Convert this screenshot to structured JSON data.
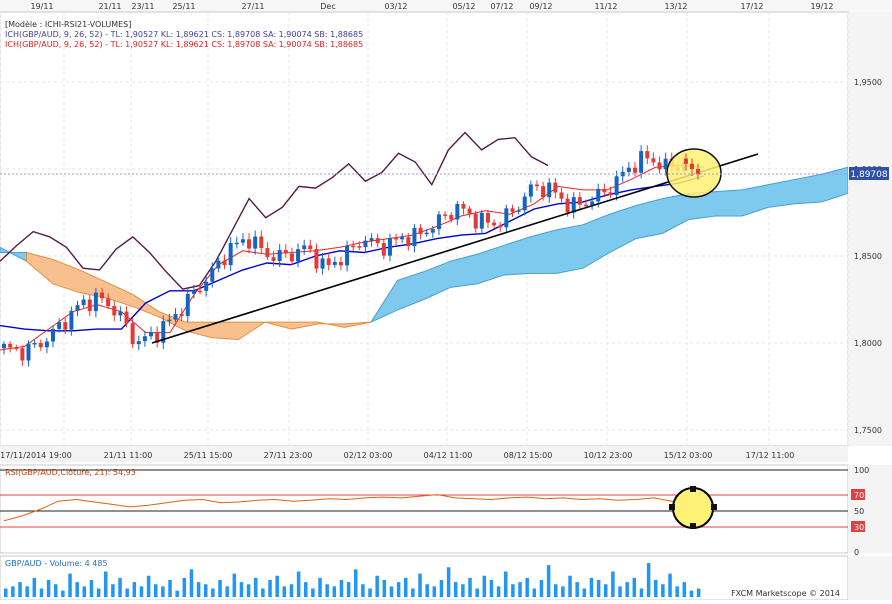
{
  "colors": {
    "price_up": "#1565c0",
    "price_down": "#e53935",
    "kijun": "#0000cc",
    "tenkan": "#ee2222",
    "chikou": "#551a4a",
    "cloud_bull": "#7ec9ee",
    "cloud_bear": "#f7c08e",
    "trendline": "#000000",
    "rsi": "#e06010",
    "volume": "#2196f3",
    "highlight": "#fff176"
  },
  "top_axis": {
    "labels": [
      "19/11",
      "21/11",
      "23/11",
      "25/11",
      "27/11",
      "Dec",
      "03/12",
      "05/12",
      "07/12",
      "09/12",
      "11/12",
      "13/12",
      "17/12",
      "19/12"
    ]
  },
  "price_panel": {
    "legend_model": "[Modèle : ICHI-RSI21-VOLUMES]",
    "legend_ichi": "ICH(GBP/AUD, 9, 26, 52) -  TL: 1,90527  KL: 1,89621  CS: 1,89708  SA: 1,90074  SB: 1,88685",
    "legend_ichi_red": "ICH(GBP/AUD, 9, 26, 52) -  TL: 1,90527  KL: 1,89621  CS: 1,89708  SA: 1,90074  SB: 1,88685",
    "current_price": "1,89708",
    "y_ticks": [
      "1,9500",
      "1,9000",
      "1,8500",
      "1,8000",
      "1,7500"
    ],
    "x_labels": [
      "17/11/2014 19:00",
      "21/11 11:00",
      "25/11 15:00",
      "27/11 23:00",
      "02/12 03:00",
      "04/12 11:00",
      "08/12 15:00",
      "10/12 23:00",
      "15/12 03:00",
      "17/12 11:00"
    ]
  },
  "rsi_panel": {
    "title": "RSI(GBP/AUD,Clôture, 21): 54,93",
    "levels": [
      "100",
      "70",
      "50",
      "30",
      "0"
    ]
  },
  "volume_panel": {
    "title": "GBP/AUD - Volume: 4 485",
    "credit": "FXCM Marketscope © 2014"
  },
  "chart_data": [
    {
      "type": "candlestick",
      "title": "GBP/AUD",
      "x": [
        "17/11/2014 19:00",
        "21/11 11:00",
        "25/11 15:00",
        "27/11 23:00",
        "02/12 03:00",
        "04/12 11:00",
        "08/12 15:00",
        "10/12 23:00",
        "15/12 03:00",
        "17/12 11:00"
      ],
      "ylim": [
        1.745,
        1.99
      ],
      "last_close": 1.89708,
      "ichimoku": {
        "tenkan": 1.90527,
        "kijun": 1.89621,
        "chikou": 1.89708,
        "senkou_a": 1.90074,
        "senkou_b": 1.88685
      },
      "price_path": [
        1.797,
        1.795,
        1.8,
        1.81,
        1.822,
        1.826,
        1.818,
        1.8,
        1.805,
        1.815,
        1.828,
        1.84,
        1.855,
        1.86,
        1.85,
        1.85,
        1.855,
        1.843,
        1.85,
        1.86,
        1.855,
        1.86,
        1.862,
        1.87,
        1.878,
        1.871,
        1.868,
        1.876,
        1.89,
        1.888,
        1.878,
        1.882,
        1.888,
        1.9,
        1.907,
        1.901,
        1.903
      ],
      "tenkan_path": [
        1.796,
        1.798,
        1.808,
        1.818,
        1.822,
        1.818,
        1.806,
        1.806,
        1.828,
        1.845,
        1.853,
        1.851,
        1.852,
        1.853,
        1.855,
        1.858,
        1.86,
        1.862,
        1.867,
        1.873,
        1.876,
        1.874,
        1.88,
        1.89,
        1.888,
        1.888,
        1.894,
        1.901,
        1.902,
        1.901
      ],
      "kijun_path": [
        1.81,
        1.808,
        1.807,
        1.807,
        1.808,
        1.808,
        1.823,
        1.83,
        1.83,
        1.836,
        1.842,
        1.846,
        1.845,
        1.85,
        1.853,
        1.852,
        1.855,
        1.857,
        1.86,
        1.862,
        1.863,
        1.87,
        1.877,
        1.88,
        1.881,
        1.885,
        1.888,
        1.89,
        1.892,
        1.896
      ],
      "chikou_path": [
        1.847,
        1.856,
        1.864,
        1.861,
        1.855,
        1.843,
        1.842,
        1.854,
        1.861,
        1.852,
        1.841,
        1.831,
        1.833,
        1.847,
        1.865,
        1.883,
        1.872,
        1.878,
        1.89,
        1.889,
        1.895,
        1.903,
        1.893,
        1.898,
        1.909,
        1.904,
        1.891,
        1.911,
        1.921,
        1.911,
        1.917,
        1.918,
        1.907,
        1.902
      ],
      "senkou_a_path": [
        1.855,
        1.847,
        1.834,
        1.829,
        1.826,
        1.821,
        1.815,
        1.807,
        1.803,
        1.802,
        1.812,
        1.812,
        1.812,
        1.809,
        1.812,
        1.836,
        1.841,
        1.847,
        1.851,
        1.856,
        1.861,
        1.865,
        1.868,
        1.874,
        1.879,
        1.883,
        1.886,
        1.887,
        1.888,
        1.891,
        1.894,
        1.897,
        1.901
      ],
      "senkou_b_path": [
        1.852,
        1.852,
        1.848,
        1.842,
        1.835,
        1.828,
        1.818,
        1.812,
        1.812,
        1.812,
        1.812,
        1.808,
        1.811,
        1.811,
        1.812,
        1.819,
        1.825,
        1.832,
        1.834,
        1.839,
        1.84,
        1.84,
        1.843,
        1.852,
        1.86,
        1.863,
        1.871,
        1.873,
        1.873,
        1.878,
        1.88,
        1.881,
        1.886
      ],
      "trendline": [
        [
          1.801,
          1.906
        ]
      ]
    },
    {
      "type": "line",
      "title": "RSI(GBP/AUD,Clôture, 21): 54,93",
      "ylim": [
        0,
        100
      ],
      "reference_lines": [
        70,
        50,
        30
      ],
      "last_value": 54.93,
      "values": [
        38,
        44,
        52,
        62,
        64,
        61,
        58,
        55,
        57,
        60,
        63,
        64,
        60,
        61,
        63,
        64,
        62,
        63,
        65,
        64,
        66,
        67,
        66,
        68,
        70,
        66,
        65,
        64,
        66,
        67,
        65,
        66,
        64,
        65,
        63,
        64,
        66,
        62,
        58,
        55
      ]
    },
    {
      "type": "bar",
      "title": "GBP/AUD - Volume: 4 485",
      "last_value": 4485,
      "values": [
        4,
        5,
        7,
        5,
        9,
        4,
        8,
        6,
        3,
        11,
        7,
        5,
        8,
        4,
        12,
        6,
        9,
        4,
        7,
        5,
        10,
        6,
        5,
        8,
        3,
        9,
        13,
        7,
        6,
        4,
        8,
        5,
        11,
        7,
        6,
        9,
        4,
        8,
        10,
        5,
        6,
        12,
        7,
        4,
        9,
        6,
        5,
        8,
        7,
        13,
        6,
        4,
        10,
        8,
        5,
        7,
        9,
        4,
        11,
        6,
        5,
        8,
        14,
        7,
        6,
        9,
        4,
        10,
        8,
        5,
        12,
        6,
        7,
        9,
        4,
        8,
        15,
        6,
        5,
        10,
        7,
        4,
        9,
        8,
        6,
        12,
        5,
        7,
        9,
        4,
        16,
        8,
        6,
        11,
        5,
        7,
        3,
        4
      ]
    }
  ]
}
